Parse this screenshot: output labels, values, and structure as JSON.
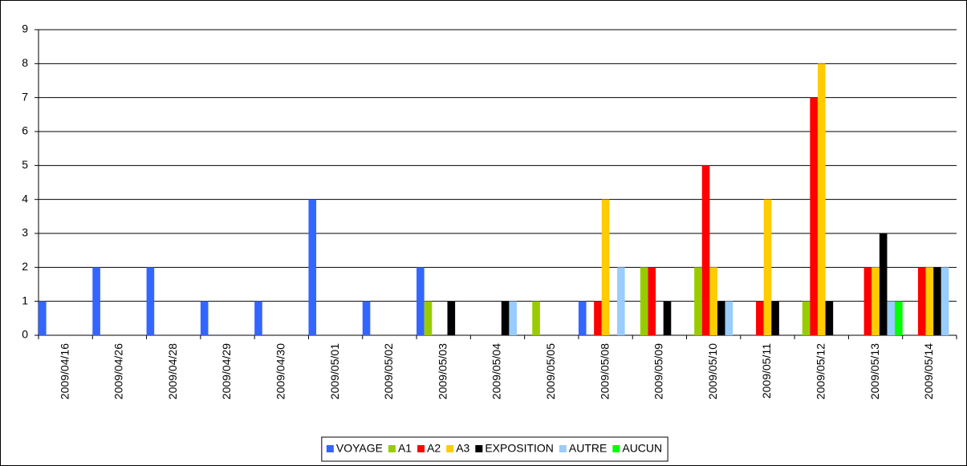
{
  "chart_data": {
    "type": "bar",
    "categories": [
      "2009/04/16",
      "2009/04/26",
      "2009/04/28",
      "2009/04/29",
      "2009/04/30",
      "2009/05/01",
      "2009/05/02",
      "2009/05/03",
      "2009/05/04",
      "2009/05/05",
      "2009/05/08",
      "2009/05/09",
      "2009/05/10",
      "2009/05/11",
      "2009/05/12",
      "2009/05/13",
      "2009/05/14"
    ],
    "series": [
      {
        "name": "VOYAGE",
        "color": "#3366ff",
        "values": [
          1,
          2,
          2,
          1,
          1,
          4,
          1,
          2,
          0,
          0,
          1,
          0,
          0,
          0,
          0,
          0,
          0
        ]
      },
      {
        "name": "A1",
        "color": "#99cc00",
        "values": [
          0,
          0,
          0,
          0,
          0,
          0,
          0,
          1,
          0,
          1,
          0,
          2,
          2,
          0,
          1,
          0,
          0
        ]
      },
      {
        "name": "A2",
        "color": "#ff0000",
        "values": [
          0,
          0,
          0,
          0,
          0,
          0,
          0,
          0,
          0,
          0,
          1,
          2,
          5,
          1,
          7,
          2,
          2
        ]
      },
      {
        "name": "A3",
        "color": "#ffcc00",
        "values": [
          0,
          0,
          0,
          0,
          0,
          0,
          0,
          0,
          0,
          0,
          4,
          0,
          2,
          4,
          8,
          2,
          2
        ]
      },
      {
        "name": "EXPOSITION",
        "color": "#000000",
        "values": [
          0,
          0,
          0,
          0,
          0,
          0,
          0,
          1,
          1,
          0,
          0,
          1,
          1,
          1,
          1,
          3,
          2
        ]
      },
      {
        "name": "AUTRE",
        "color": "#99ccff",
        "values": [
          0,
          0,
          0,
          0,
          0,
          0,
          0,
          0,
          1,
          0,
          2,
          0,
          1,
          0,
          0,
          1,
          2
        ]
      },
      {
        "name": "AUCUN",
        "color": "#00ff00",
        "values": [
          0,
          0,
          0,
          0,
          0,
          0,
          0,
          0,
          0,
          0,
          0,
          0,
          0,
          0,
          0,
          1,
          0
        ]
      }
    ],
    "ylim": [
      0,
      9
    ],
    "yticks": [
      0,
      1,
      2,
      3,
      4,
      5,
      6,
      7,
      8,
      9
    ],
    "grid": true,
    "legend": "bottom"
  }
}
